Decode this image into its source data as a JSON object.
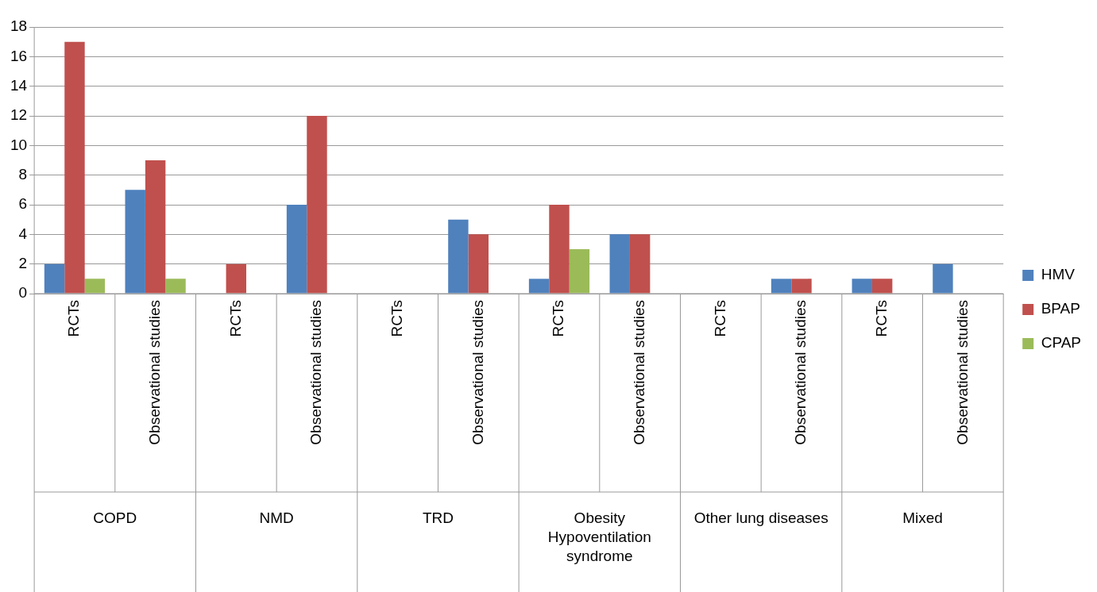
{
  "chart_data": {
    "type": "bar",
    "categories": [
      "RCTs",
      "Observational studies",
      "RCTs",
      "Observational studies",
      "RCTs",
      "Observational studies",
      "RCTs",
      "Observational studies",
      "RCTs",
      "Observational studies",
      "RCTs",
      "Observational studies"
    ],
    "annotations": [
      "COPD",
      "NMD",
      "TRD",
      "Obesity Hypoventilation syndrome",
      "Other lung diseases",
      "Mixed"
    ],
    "series": [
      {
        "name": "HMV",
        "color": "#4f81bd",
        "values": [
          2,
          7,
          0,
          6,
          0,
          5,
          1,
          4,
          0,
          1,
          1,
          2
        ]
      },
      {
        "name": "BPAP",
        "color": "#c0504d",
        "values": [
          17,
          9,
          2,
          12,
          0,
          4,
          6,
          4,
          0,
          1,
          1,
          0
        ]
      },
      {
        "name": "CPAP",
        "color": "#9bbb59",
        "values": [
          1,
          1,
          0,
          0,
          0,
          0,
          3,
          0,
          0,
          0,
          0,
          0
        ]
      }
    ],
    "ylim": [
      0,
      18
    ],
    "yticks": [
      0,
      2,
      4,
      6,
      8,
      10,
      12,
      14,
      16,
      18
    ],
    "grid": "y",
    "legend": "right"
  }
}
